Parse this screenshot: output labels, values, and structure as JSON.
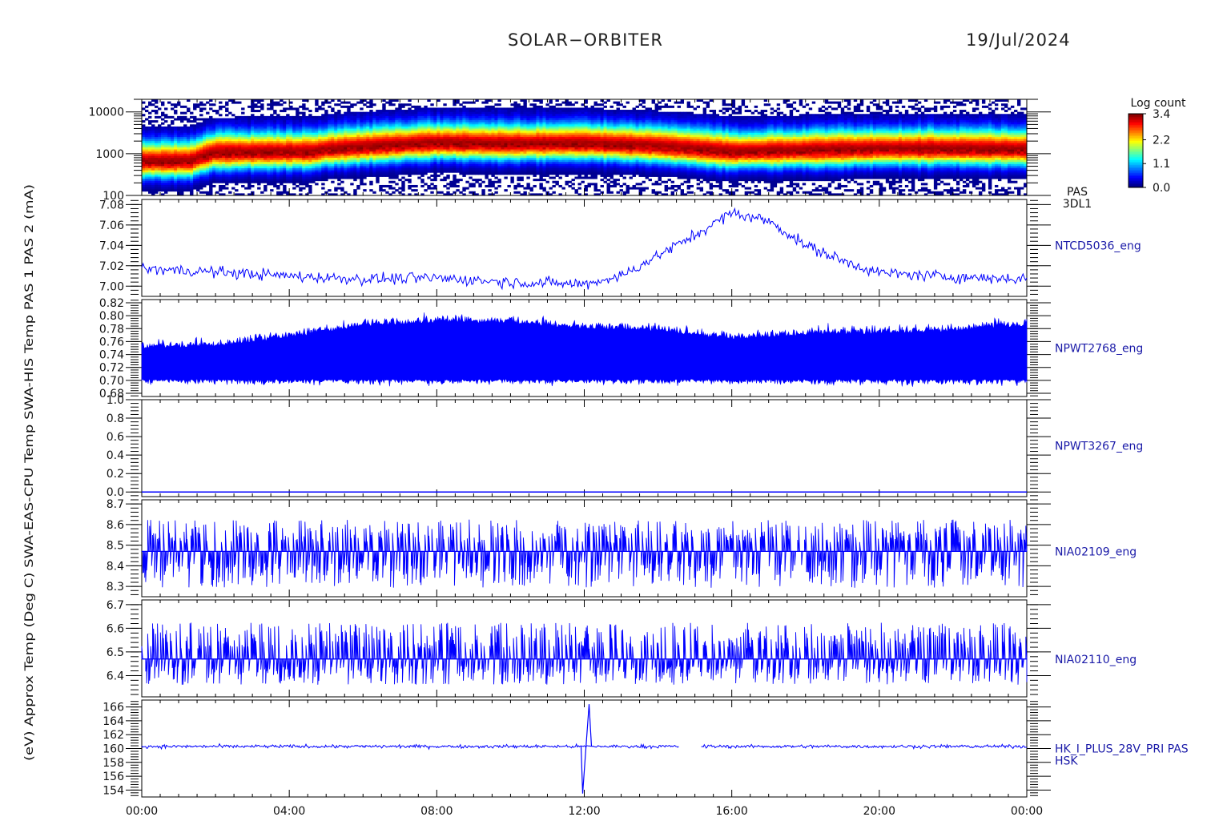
{
  "header": {
    "title": "SOLAR−ORBITER",
    "date": "19/Jul/2024"
  },
  "colors": {
    "series": "#0000ff",
    "label": "#1a1aa8",
    "axis": "#000000",
    "background": "#ffffff"
  },
  "chart_data": [
    {
      "type": "heatmap",
      "title": "",
      "ylabel": "(eV)",
      "yscale": "log",
      "ylim": [
        100,
        20000
      ],
      "yticks": [
        "10000",
        "1000",
        "100"
      ],
      "yticks_values": [
        10000,
        1000,
        100
      ],
      "instrument_label": [
        "PAS",
        "3DL1"
      ],
      "colorbar": {
        "title": "Log count",
        "range": [
          0.0,
          3.4
        ],
        "ticks": [
          "3.4",
          "2.2",
          "1.1",
          "0.0"
        ],
        "tick_values": [
          3.4,
          2.2,
          1.1,
          0.0
        ]
      },
      "peak_energy_track": {
        "time": [
          "00:00",
          "01:20",
          "02:00",
          "04:40",
          "05:00",
          "08:00",
          "10:00",
          "12:00",
          "14:00",
          "16:00",
          "20:00",
          "22:00",
          "24:00"
        ],
        "energy_eV": [
          650,
          660,
          1050,
          1100,
          1250,
          1800,
          1700,
          1750,
          1500,
          1100,
          1300,
          1300,
          1250
        ]
      }
    },
    {
      "type": "line",
      "ylabel": "Approx Temp (Deg C)",
      "series_label": "NTCD5036_eng",
      "ylim": [
        6.99,
        7.085
      ],
      "yticks": [
        "7.08",
        "7.06",
        "7.04",
        "7.02",
        "7.00"
      ],
      "yticks_values": [
        7.08,
        7.06,
        7.04,
        7.02,
        7.0
      ],
      "x": [
        "00:00",
        "02:00",
        "04:00",
        "06:00",
        "08:00",
        "10:00",
        "12:00",
        "13:00",
        "14:00",
        "15:00",
        "16:00",
        "17:00",
        "18:00",
        "19:00",
        "20:00",
        "22:00",
        "24:00"
      ],
      "values": [
        7.017,
        7.014,
        7.01,
        7.007,
        7.008,
        7.004,
        7.002,
        7.01,
        7.03,
        7.05,
        7.072,
        7.064,
        7.04,
        7.025,
        7.013,
        7.009,
        7.007
      ]
    },
    {
      "type": "area",
      "ylabel": "SWA-EAS-CPU Temp",
      "series_label": "NPWT2768_eng",
      "ylim": [
        0.675,
        0.825
      ],
      "yticks": [
        "0.82",
        "0.80",
        "0.78",
        "0.76",
        "0.74",
        "0.72",
        "0.70",
        "0.68"
      ],
      "yticks_values": [
        0.82,
        0.8,
        0.78,
        0.76,
        0.74,
        0.72,
        0.7,
        0.68
      ],
      "x": [
        "00:00",
        "02:00",
        "04:00",
        "06:00",
        "08:00",
        "10:00",
        "12:00",
        "14:00",
        "16:00",
        "18:00",
        "20:00",
        "22:00",
        "24:00"
      ],
      "upper": [
        0.749,
        0.752,
        0.765,
        0.783,
        0.789,
        0.788,
        0.779,
        0.776,
        0.762,
        0.77,
        0.772,
        0.775,
        0.784
      ],
      "lower": [
        0.702,
        0.702,
        0.702,
        0.702,
        0.702,
        0.702,
        0.702,
        0.702,
        0.702,
        0.702,
        0.702,
        0.702,
        0.702
      ]
    },
    {
      "type": "line",
      "ylabel": "SWA-HIS Temp",
      "series_label": "NPWT3267_eng",
      "ylim": [
        -0.05,
        1.0
      ],
      "yticks": [
        "1.0",
        "0.8",
        "0.6",
        "0.4",
        "0.2",
        "0.0"
      ],
      "yticks_values": [
        1.0,
        0.8,
        0.6,
        0.4,
        0.2,
        0.0
      ],
      "x": [
        "00:00",
        "24:00"
      ],
      "values": [
        0.0,
        0.0
      ]
    },
    {
      "type": "line",
      "ylabel": "PAS 1",
      "series_label": "NIA02109_eng",
      "ylim": [
        8.25,
        8.72
      ],
      "yticks": [
        "8.7",
        "8.6",
        "8.5",
        "8.4",
        "8.3"
      ],
      "yticks_values": [
        8.7,
        8.6,
        8.5,
        8.4,
        8.3
      ],
      "baseline": 8.47,
      "low_excursion": 8.31,
      "high_excursion": 8.61
    },
    {
      "type": "line",
      "ylabel": "PAS 2",
      "series_label": "NIA02110_eng",
      "ylim": [
        6.31,
        6.72
      ],
      "yticks": [
        "6.7",
        "6.6",
        "6.5",
        "6.4"
      ],
      "yticks_values": [
        6.7,
        6.6,
        6.5,
        6.4
      ],
      "baseline": 6.47,
      "low_excursion": 6.37,
      "high_excursion": 6.61
    },
    {
      "type": "line",
      "ylabel": "(mA)",
      "series_label": [
        "HK_I_PLUS_28V_PRI PAS",
        "HSK"
      ],
      "ylim": [
        153.0,
        167.0
      ],
      "yticks": [
        "166",
        "164",
        "162",
        "160",
        "158",
        "156",
        "154"
      ],
      "yticks_values": [
        166,
        164,
        162,
        160,
        158,
        156,
        154
      ],
      "baseline": 160.3,
      "spike": {
        "time": "12:00",
        "min": 153.5,
        "max": 166.4
      },
      "gap": [
        "14:35",
        "15:10"
      ]
    }
  ],
  "xaxis": {
    "ticks": [
      "00:00",
      "04:00",
      "08:00",
      "12:00",
      "16:00",
      "20:00",
      "00:00"
    ],
    "range_hours": [
      0,
      24
    ]
  },
  "left_axis_title": "(eV) Approx Temp (Deg C) SWA-EAS-CPU Temp SWA-HIS Temp PAS 1 PAS 2 (mA)"
}
